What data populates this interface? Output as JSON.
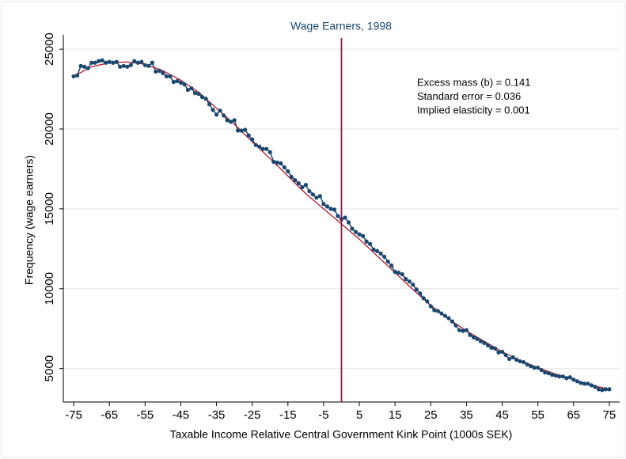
{
  "chart_data": {
    "type": "scatter-line",
    "title": "Wage Earners, 1998",
    "title_color": "#1a476f",
    "x_label": "Taxable Income Relative Central Government Kink Point (1000s SEK)",
    "y_label": "Frequency (wage earners)",
    "annotations": [
      "Excess mass (b) = 0.141",
      "Standard error = 0.036",
      "Implied elasticity = 0.001"
    ],
    "xlim": [
      -77.9,
      77.9
    ],
    "ylim": [
      2900,
      25700
    ],
    "xticks": [
      -75,
      -65,
      -55,
      -45,
      -35,
      -25,
      -15,
      -5,
      5,
      15,
      25,
      35,
      45,
      55,
      65,
      75
    ],
    "yticks": [
      5000,
      10000,
      15000,
      20000,
      25000
    ],
    "grid": true,
    "vline": 0,
    "vline_color": "#8b1a4a",
    "series": [
      {
        "color": "#1a476f",
        "markers": true,
        "x": [
          -75,
          -74,
          -73,
          -72,
          -71,
          -70,
          -69,
          -68,
          -67,
          -66,
          -65,
          -64,
          -63,
          -62,
          -61,
          -60,
          -59,
          -58,
          -57,
          -56,
          -55,
          -54,
          -53,
          -52,
          -51,
          -50,
          -49,
          -48,
          -47,
          -46,
          -45,
          -44,
          -43,
          -42,
          -41,
          -40,
          -39,
          -38,
          -37,
          -36,
          -35,
          -34,
          -33,
          -32,
          -31,
          -30,
          -29,
          -28,
          -27,
          -26,
          -25,
          -24,
          -23,
          -22,
          -21,
          -20,
          -19,
          -18,
          -17,
          -16,
          -15,
          -14,
          -13,
          -12,
          -11,
          -10,
          -9,
          -8,
          -7,
          -6,
          -5,
          -4,
          -3,
          -2,
          -1,
          0,
          1,
          2,
          3,
          4,
          5,
          6,
          7,
          8,
          9,
          10,
          11,
          12,
          13,
          14,
          15,
          16,
          17,
          18,
          19,
          20,
          21,
          22,
          23,
          24,
          25,
          26,
          27,
          28,
          29,
          30,
          31,
          32,
          33,
          34,
          35,
          36,
          37,
          38,
          39,
          40,
          41,
          42,
          43,
          44,
          45,
          46,
          47,
          48,
          49,
          50,
          51,
          52,
          53,
          54,
          55,
          56,
          57,
          58,
          59,
          60,
          61,
          62,
          63,
          64,
          65,
          66,
          67,
          68,
          69,
          70,
          71,
          72,
          73,
          74,
          75
        ],
        "values": [
          23300,
          23350,
          23950,
          23900,
          23800,
          24150,
          24150,
          24250,
          24300,
          24150,
          24200,
          24150,
          24200,
          23900,
          23950,
          23900,
          24000,
          24250,
          24150,
          24200,
          24000,
          23950,
          24150,
          23600,
          23650,
          23500,
          23300,
          23300,
          22950,
          23000,
          22900,
          22800,
          22450,
          22550,
          22250,
          22200,
          22000,
          21900,
          21550,
          21200,
          20900,
          21150,
          20850,
          20550,
          20450,
          20550,
          19900,
          19900,
          19950,
          19600,
          19350,
          19000,
          18900,
          18750,
          18750,
          18550,
          17950,
          17900,
          17850,
          17600,
          17350,
          17000,
          16800,
          16600,
          16350,
          16500,
          16100,
          15900,
          15700,
          15800,
          15300,
          15150,
          15000,
          14950,
          14550,
          14350,
          14450,
          14150,
          13750,
          13550,
          13400,
          13300,
          12950,
          12800,
          12450,
          12350,
          12200,
          12000,
          11700,
          11450,
          11050,
          11000,
          10900,
          10600,
          10450,
          10250,
          9950,
          9700,
          9400,
          9200,
          8900,
          8650,
          8600,
          8450,
          8300,
          8150,
          7950,
          7700,
          7400,
          7350,
          7400,
          7100,
          6950,
          6850,
          6700,
          6600,
          6450,
          6300,
          6250,
          6000,
          6050,
          5850,
          5600,
          5700,
          5550,
          5450,
          5400,
          5250,
          5150,
          5050,
          5050,
          4900,
          4750,
          4700,
          4600,
          4550,
          4500,
          4500,
          4400,
          4450,
          4300,
          4200,
          4100,
          4050,
          4050,
          3950,
          3850,
          3700,
          3650,
          3700,
          3700
        ]
      },
      {
        "color": "#b2182b",
        "markers": false,
        "x": [
          -75,
          -70,
          -65,
          -60,
          -55,
          -50,
          -45,
          -40,
          -35,
          -30,
          -25,
          -20,
          -15,
          -10,
          -5,
          0,
          5,
          10,
          15,
          20,
          25,
          30,
          35,
          40,
          45,
          50,
          55,
          60,
          65,
          70,
          75
        ],
        "values": [
          23300,
          23900,
          24150,
          24200,
          24050,
          23650,
          23050,
          22300,
          21300,
          20300,
          19200,
          18150,
          17050,
          15950,
          15000,
          14050,
          13100,
          12050,
          11000,
          9950,
          8950,
          8100,
          7350,
          6700,
          6050,
          5500,
          5050,
          4650,
          4300,
          3950,
          3700
        ]
      }
    ]
  }
}
